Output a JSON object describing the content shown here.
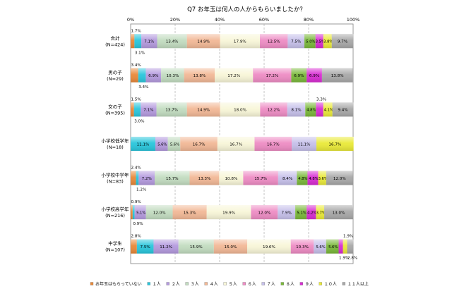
{
  "chart_data": {
    "type": "bar",
    "stacked": "percent",
    "orientation": "horizontal",
    "title": "Q7 お年玉は何人の人からもらいましたか？",
    "xlim": [
      0,
      100
    ],
    "xticks": [
      "0%",
      "20%",
      "40%",
      "60%",
      "80%",
      "100%"
    ],
    "legend_position": "bottom",
    "categories": [
      {
        "name": "合計",
        "n": "(N=424)"
      },
      {
        "name": "男の子",
        "n": "(N=29)"
      },
      {
        "name": "女の子",
        "n": "(N=395)"
      },
      {
        "name": "小学校低学年",
        "n": "(N=18)"
      },
      {
        "name": "小学校中学年",
        "n": "(N=83)"
      },
      {
        "name": "小学校高学年",
        "n": "(N=216)"
      },
      {
        "name": "中学生",
        "n": "(N=107)"
      }
    ],
    "series": [
      {
        "name": "お年玉はもらっていない",
        "color": "#e8893a",
        "values": [
          1.7,
          3.4,
          1.5,
          0,
          2.4,
          0.9,
          2.8
        ]
      },
      {
        "name": "１人",
        "color": "#29c6dc",
        "values": [
          3.1,
          3.4,
          3.0,
          11.1,
          1.2,
          0.9,
          7.5
        ]
      },
      {
        "name": "２人",
        "color": "#b49ade",
        "values": [
          7.1,
          6.9,
          7.1,
          5.6,
          7.2,
          5.1,
          11.2
        ]
      },
      {
        "name": "３人",
        "color": "#c2dcc0",
        "values": [
          13.4,
          10.3,
          13.7,
          5.6,
          15.7,
          12.0,
          15.9
        ]
      },
      {
        "name": "４人",
        "color": "#f2b896",
        "values": [
          14.9,
          13.8,
          14.9,
          16.7,
          13.3,
          15.3,
          15.0
        ]
      },
      {
        "name": "５人",
        "color": "#f8f6d8",
        "values": [
          17.9,
          17.2,
          18.0,
          16.7,
          10.8,
          19.9,
          19.6
        ]
      },
      {
        "name": "６人",
        "color": "#ee8cc4",
        "values": [
          12.5,
          17.2,
          12.2,
          16.7,
          15.7,
          12.0,
          10.3
        ]
      },
      {
        "name": "７人",
        "color": "#c6c0ea",
        "values": [
          7.5,
          0,
          8.1,
          11.1,
          8.4,
          7.9,
          5.6
        ]
      },
      {
        "name": "８人",
        "color": "#7ab83a",
        "values": [
          5.0,
          6.9,
          4.8,
          0,
          4.8,
          5.1,
          5.6
        ]
      },
      {
        "name": "９人",
        "color": "#d82cd2",
        "values": [
          3.5,
          6.9,
          3.3,
          0,
          4.8,
          4.2,
          1.9
        ]
      },
      {
        "name": "１０人",
        "color": "#eaea38",
        "values": [
          3.8,
          0,
          4.1,
          16.7,
          3.6,
          3.7,
          1.9
        ]
      },
      {
        "name": "１１人以上",
        "color": "#a8a8a8",
        "values": [
          9.7,
          13.8,
          9.4,
          0,
          12.0,
          13.0,
          2.8
        ]
      }
    ]
  }
}
